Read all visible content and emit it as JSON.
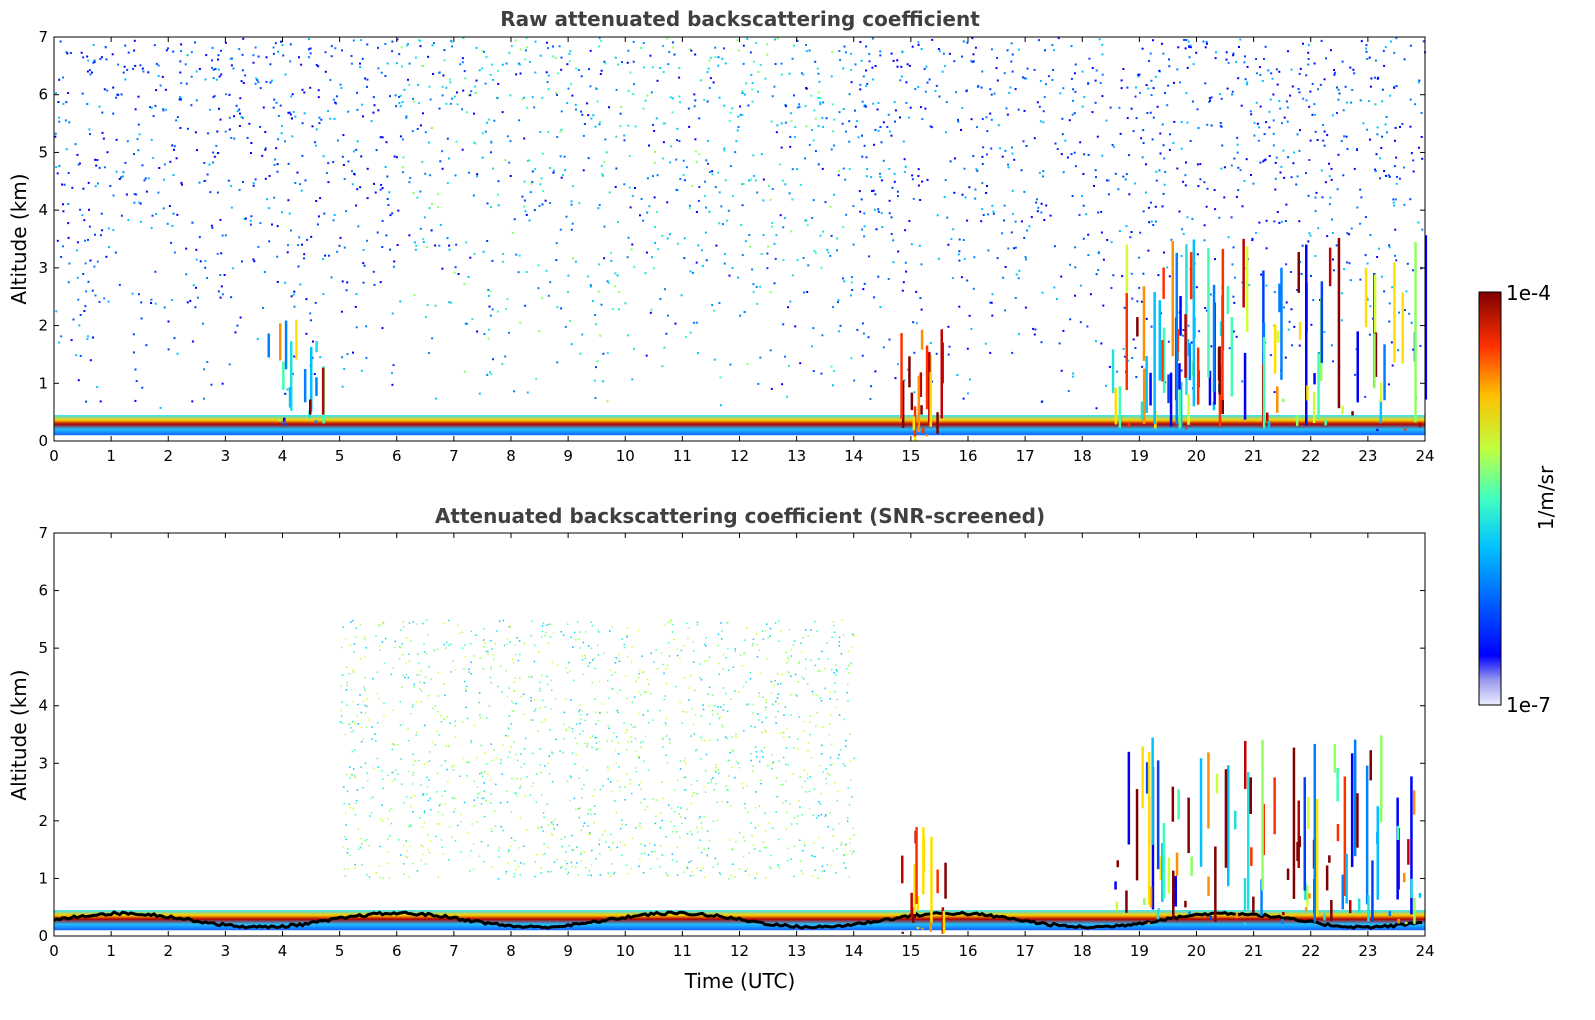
{
  "chart_data": [
    {
      "type": "heatmap",
      "title": "Raw attenuated backscattering coefficient",
      "xlabel": "",
      "ylabel": "Altitude (km)",
      "xlim": [
        0,
        24
      ],
      "ylim": [
        0,
        7
      ],
      "x_ticks": [
        "0",
        "1",
        "2",
        "3",
        "4",
        "5",
        "6",
        "7",
        "8",
        "9",
        "10",
        "11",
        "12",
        "13",
        "14",
        "15",
        "16",
        "17",
        "18",
        "19",
        "20",
        "21",
        "22",
        "23",
        "24"
      ],
      "y_ticks": [
        "0",
        "1",
        "2",
        "3",
        "4",
        "5",
        "6",
        "7"
      ],
      "features": [
        {
          "name": "boundary-layer",
          "time_start": 0,
          "time_end": 24,
          "altitude_km": [
            0.1,
            0.45
          ],
          "intensity": "high"
        },
        {
          "name": "cloud",
          "time_start": 3.7,
          "time_end": 4.7,
          "altitude_km": [
            0.3,
            2.2
          ],
          "intensity": "mixed"
        },
        {
          "name": "cloud",
          "time_start": 14.8,
          "time_end": 15.6,
          "altitude_km": [
            0.0,
            2.0
          ],
          "intensity": "high"
        },
        {
          "name": "cloud",
          "time_start": 18.5,
          "time_end": 24,
          "altitude_km": [
            0.2,
            3.6
          ],
          "intensity": "mixed"
        }
      ]
    },
    {
      "type": "heatmap",
      "title": "Attenuated backscattering coefficient (SNR-screened)",
      "xlabel": "Time (UTC)",
      "ylabel": "Altitude (km)",
      "xlim": [
        0,
        24
      ],
      "ylim": [
        0,
        7
      ],
      "x_ticks": [
        "0",
        "1",
        "2",
        "3",
        "4",
        "5",
        "6",
        "7",
        "8",
        "9",
        "10",
        "11",
        "12",
        "13",
        "14",
        "15",
        "16",
        "17",
        "18",
        "19",
        "20",
        "21",
        "22",
        "23",
        "24"
      ],
      "y_ticks": [
        "0",
        "1",
        "2",
        "3",
        "4",
        "5",
        "6",
        "7"
      ],
      "features": [
        {
          "name": "boundary-layer",
          "time_start": 0,
          "time_end": 24,
          "altitude_km": [
            0.1,
            0.45
          ],
          "intensity": "high"
        },
        {
          "name": "aerosol-haze",
          "time_start": 5,
          "time_end": 14,
          "altitude_km": [
            1.0,
            5.5
          ],
          "intensity": "medium"
        },
        {
          "name": "cloud",
          "time_start": 14.8,
          "time_end": 15.6,
          "altitude_km": [
            0.0,
            2.0
          ],
          "intensity": "high"
        },
        {
          "name": "cloud",
          "time_start": 18.5,
          "time_end": 24,
          "altitude_km": [
            0.2,
            3.5
          ],
          "intensity": "mixed"
        }
      ]
    }
  ],
  "colorbar": {
    "max_label": "1e-4",
    "min_label": "1e-7",
    "unit_label": "1/m/sr",
    "colormap": "jet",
    "scale": "log"
  }
}
